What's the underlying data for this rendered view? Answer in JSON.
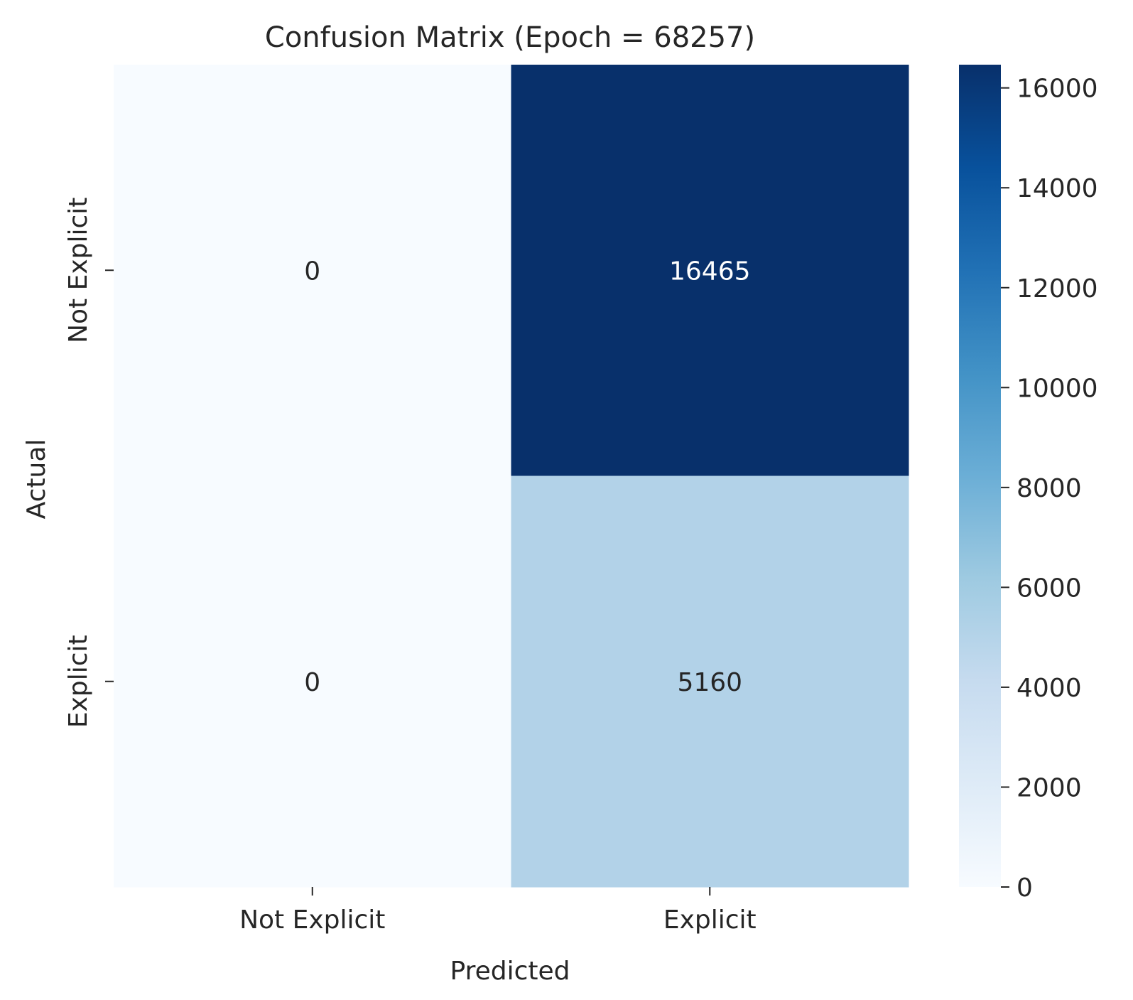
{
  "chart_data": {
    "type": "heatmap",
    "title": "Confusion Matrix (Epoch = 68257)",
    "xlabel": "Predicted",
    "ylabel": "Actual",
    "x_categories": [
      "Not Explicit",
      "Explicit"
    ],
    "y_categories": [
      "Not Explicit",
      "Explicit"
    ],
    "values": [
      [
        0,
        16465
      ],
      [
        0,
        5160
      ]
    ],
    "colormap": "Blues",
    "colorbar": {
      "range": [
        0,
        16465
      ],
      "ticks": [
        0,
        2000,
        4000,
        6000,
        8000,
        10000,
        12000,
        14000,
        16000
      ]
    },
    "colors": {
      "colormap_stops": [
        "#f7fbff",
        "#deebf7",
        "#c6dbef",
        "#9ecae1",
        "#6baed6",
        "#4292c6",
        "#2171b5",
        "#08519c",
        "#08306b"
      ],
      "annotation_dark": "#262626",
      "annotation_light": "#ffffff"
    }
  }
}
